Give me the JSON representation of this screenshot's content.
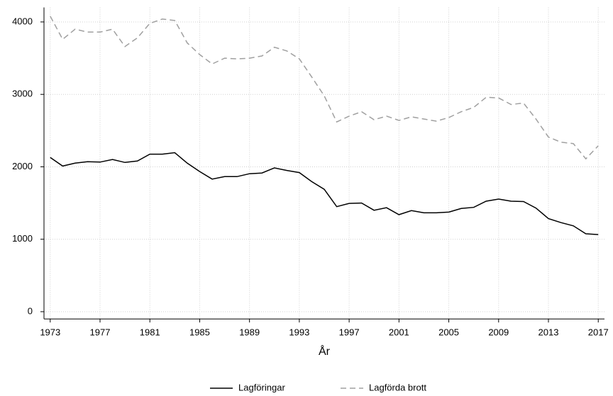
{
  "chart_data": {
    "type": "line",
    "x_label": "År",
    "x": [
      1973,
      1974,
      1975,
      1976,
      1977,
      1978,
      1979,
      1980,
      1981,
      1982,
      1983,
      1984,
      1985,
      1986,
      1987,
      1988,
      1989,
      1990,
      1991,
      1992,
      1993,
      1994,
      1995,
      1996,
      1997,
      1998,
      1999,
      2000,
      2001,
      2002,
      2003,
      2004,
      2005,
      2006,
      2007,
      2008,
      2009,
      2010,
      2011,
      2012,
      2013,
      2014,
      2015,
      2016,
      2017
    ],
    "series": [
      {
        "name": "Lagföringar",
        "color": "#000000",
        "dash": false,
        "values": [
          2130,
          2010,
          2050,
          2070,
          2065,
          2100,
          2060,
          2080,
          2175,
          2175,
          2195,
          2050,
          1935,
          1830,
          1865,
          1865,
          1905,
          1915,
          1985,
          1950,
          1920,
          1795,
          1690,
          1450,
          1495,
          1500,
          1400,
          1435,
          1340,
          1395,
          1365,
          1365,
          1375,
          1425,
          1440,
          1525,
          1555,
          1525,
          1520,
          1430,
          1285,
          1230,
          1185,
          1075,
          1065
        ]
      },
      {
        "name": "Lagförda brott",
        "color": "#a0a0a0",
        "dash": true,
        "values": [
          4080,
          3760,
          3900,
          3860,
          3860,
          3900,
          3660,
          3780,
          3980,
          4040,
          4020,
          3710,
          3550,
          3420,
          3500,
          3490,
          3500,
          3530,
          3650,
          3600,
          3490,
          3240,
          2980,
          2620,
          2700,
          2760,
          2650,
          2700,
          2640,
          2690,
          2660,
          2630,
          2680,
          2760,
          2820,
          2960,
          2950,
          2860,
          2880,
          2660,
          2410,
          2340,
          2320,
          2110,
          2290
        ]
      }
    ],
    "xlim": [
      1972.5,
      2017.5
    ],
    "xticks": [
      1973,
      1977,
      1981,
      1985,
      1989,
      1993,
      1997,
      2001,
      2005,
      2009,
      2013,
      2017
    ],
    "ylim": [
      -100,
      4200
    ],
    "yticks": [
      0,
      1000,
      2000,
      3000,
      4000
    ],
    "grid": true,
    "legend": "bottom"
  }
}
